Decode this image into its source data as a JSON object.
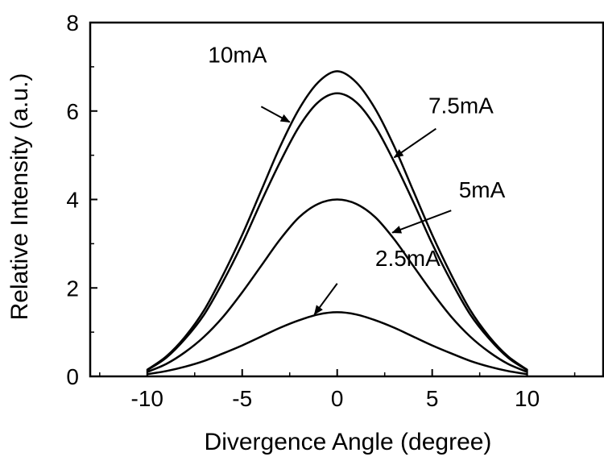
{
  "chart_data": {
    "type": "line",
    "title": "",
    "xlabel": "Divergence Angle (degree)",
    "ylabel": "Relative Intensity (a.u.)",
    "xlim": [
      -13,
      14
    ],
    "ylim": [
      0,
      8
    ],
    "xticks": [
      -10,
      -5,
      0,
      5,
      10
    ],
    "xtick_labels": [
      "-10",
      "-5",
      "0",
      "5",
      "10"
    ],
    "yticks": [
      0,
      2,
      4,
      6,
      8
    ],
    "ytick_labels": [
      "0",
      "2",
      "4",
      "6",
      "8"
    ],
    "grid": false,
    "legend": "none",
    "series": [
      {
        "name": "10mA",
        "x": [
          -10,
          -9,
          -8,
          -7,
          -6,
          -5,
          -4,
          -3,
          -2,
          -1,
          0,
          1,
          2,
          3,
          4,
          5,
          6,
          7,
          8,
          9,
          10
        ],
        "y": [
          0.15,
          0.45,
          0.9,
          1.5,
          2.3,
          3.2,
          4.2,
          5.2,
          6.05,
          6.65,
          6.9,
          6.65,
          6.05,
          5.2,
          4.2,
          3.2,
          2.3,
          1.5,
          0.9,
          0.45,
          0.15
        ]
      },
      {
        "name": "7.5mA",
        "x": [
          -10,
          -9,
          -8,
          -7,
          -6,
          -5,
          -4,
          -3,
          -2,
          -1,
          0,
          1,
          2,
          3,
          4,
          5,
          6,
          7,
          8,
          9,
          10
        ],
        "y": [
          0.14,
          0.42,
          0.85,
          1.4,
          2.15,
          3.0,
          3.95,
          4.85,
          5.65,
          6.2,
          6.4,
          6.2,
          5.65,
          4.85,
          3.95,
          3.0,
          2.15,
          1.4,
          0.85,
          0.42,
          0.14
        ]
      },
      {
        "name": "5mA",
        "x": [
          -10,
          -9,
          -8,
          -7,
          -6,
          -5,
          -4,
          -3,
          -2,
          -1,
          0,
          1,
          2,
          3,
          4,
          5,
          6,
          7,
          8,
          9,
          10
        ],
        "y": [
          0.1,
          0.28,
          0.55,
          0.9,
          1.35,
          1.9,
          2.5,
          3.1,
          3.6,
          3.9,
          4.0,
          3.9,
          3.6,
          3.1,
          2.5,
          1.9,
          1.35,
          0.9,
          0.55,
          0.28,
          0.1
        ]
      },
      {
        "name": "2.5mA",
        "x": [
          -10,
          -9,
          -8,
          -7,
          -6,
          -5,
          -4,
          -3,
          -2,
          -1,
          0,
          1,
          2,
          3,
          4,
          5,
          6,
          7,
          8,
          9,
          10
        ],
        "y": [
          0.05,
          0.12,
          0.22,
          0.35,
          0.52,
          0.7,
          0.9,
          1.1,
          1.27,
          1.4,
          1.45,
          1.4,
          1.27,
          1.1,
          0.9,
          0.7,
          0.52,
          0.35,
          0.22,
          0.12,
          0.05
        ]
      }
    ],
    "annotations": [
      {
        "text": "10mA",
        "label_x": -6.8,
        "label_y": 7.1,
        "arrow_from": [
          -4.0,
          6.1
        ],
        "arrow_to": [
          -2.5,
          5.75
        ]
      },
      {
        "text": "7.5mA",
        "label_x": 4.8,
        "label_y": 5.95,
        "arrow_from": [
          5.2,
          5.6
        ],
        "arrow_to": [
          3.0,
          4.95
        ]
      },
      {
        "text": "5mA",
        "label_x": 6.4,
        "label_y": 4.05,
        "arrow_from": [
          6.0,
          3.75
        ],
        "arrow_to": [
          2.9,
          3.25
        ]
      },
      {
        "text": "2.5mA",
        "label_x": 2.0,
        "label_y": 2.5,
        "arrow_from": [
          0.0,
          2.1
        ],
        "arrow_to": [
          -1.2,
          1.4
        ]
      }
    ]
  }
}
